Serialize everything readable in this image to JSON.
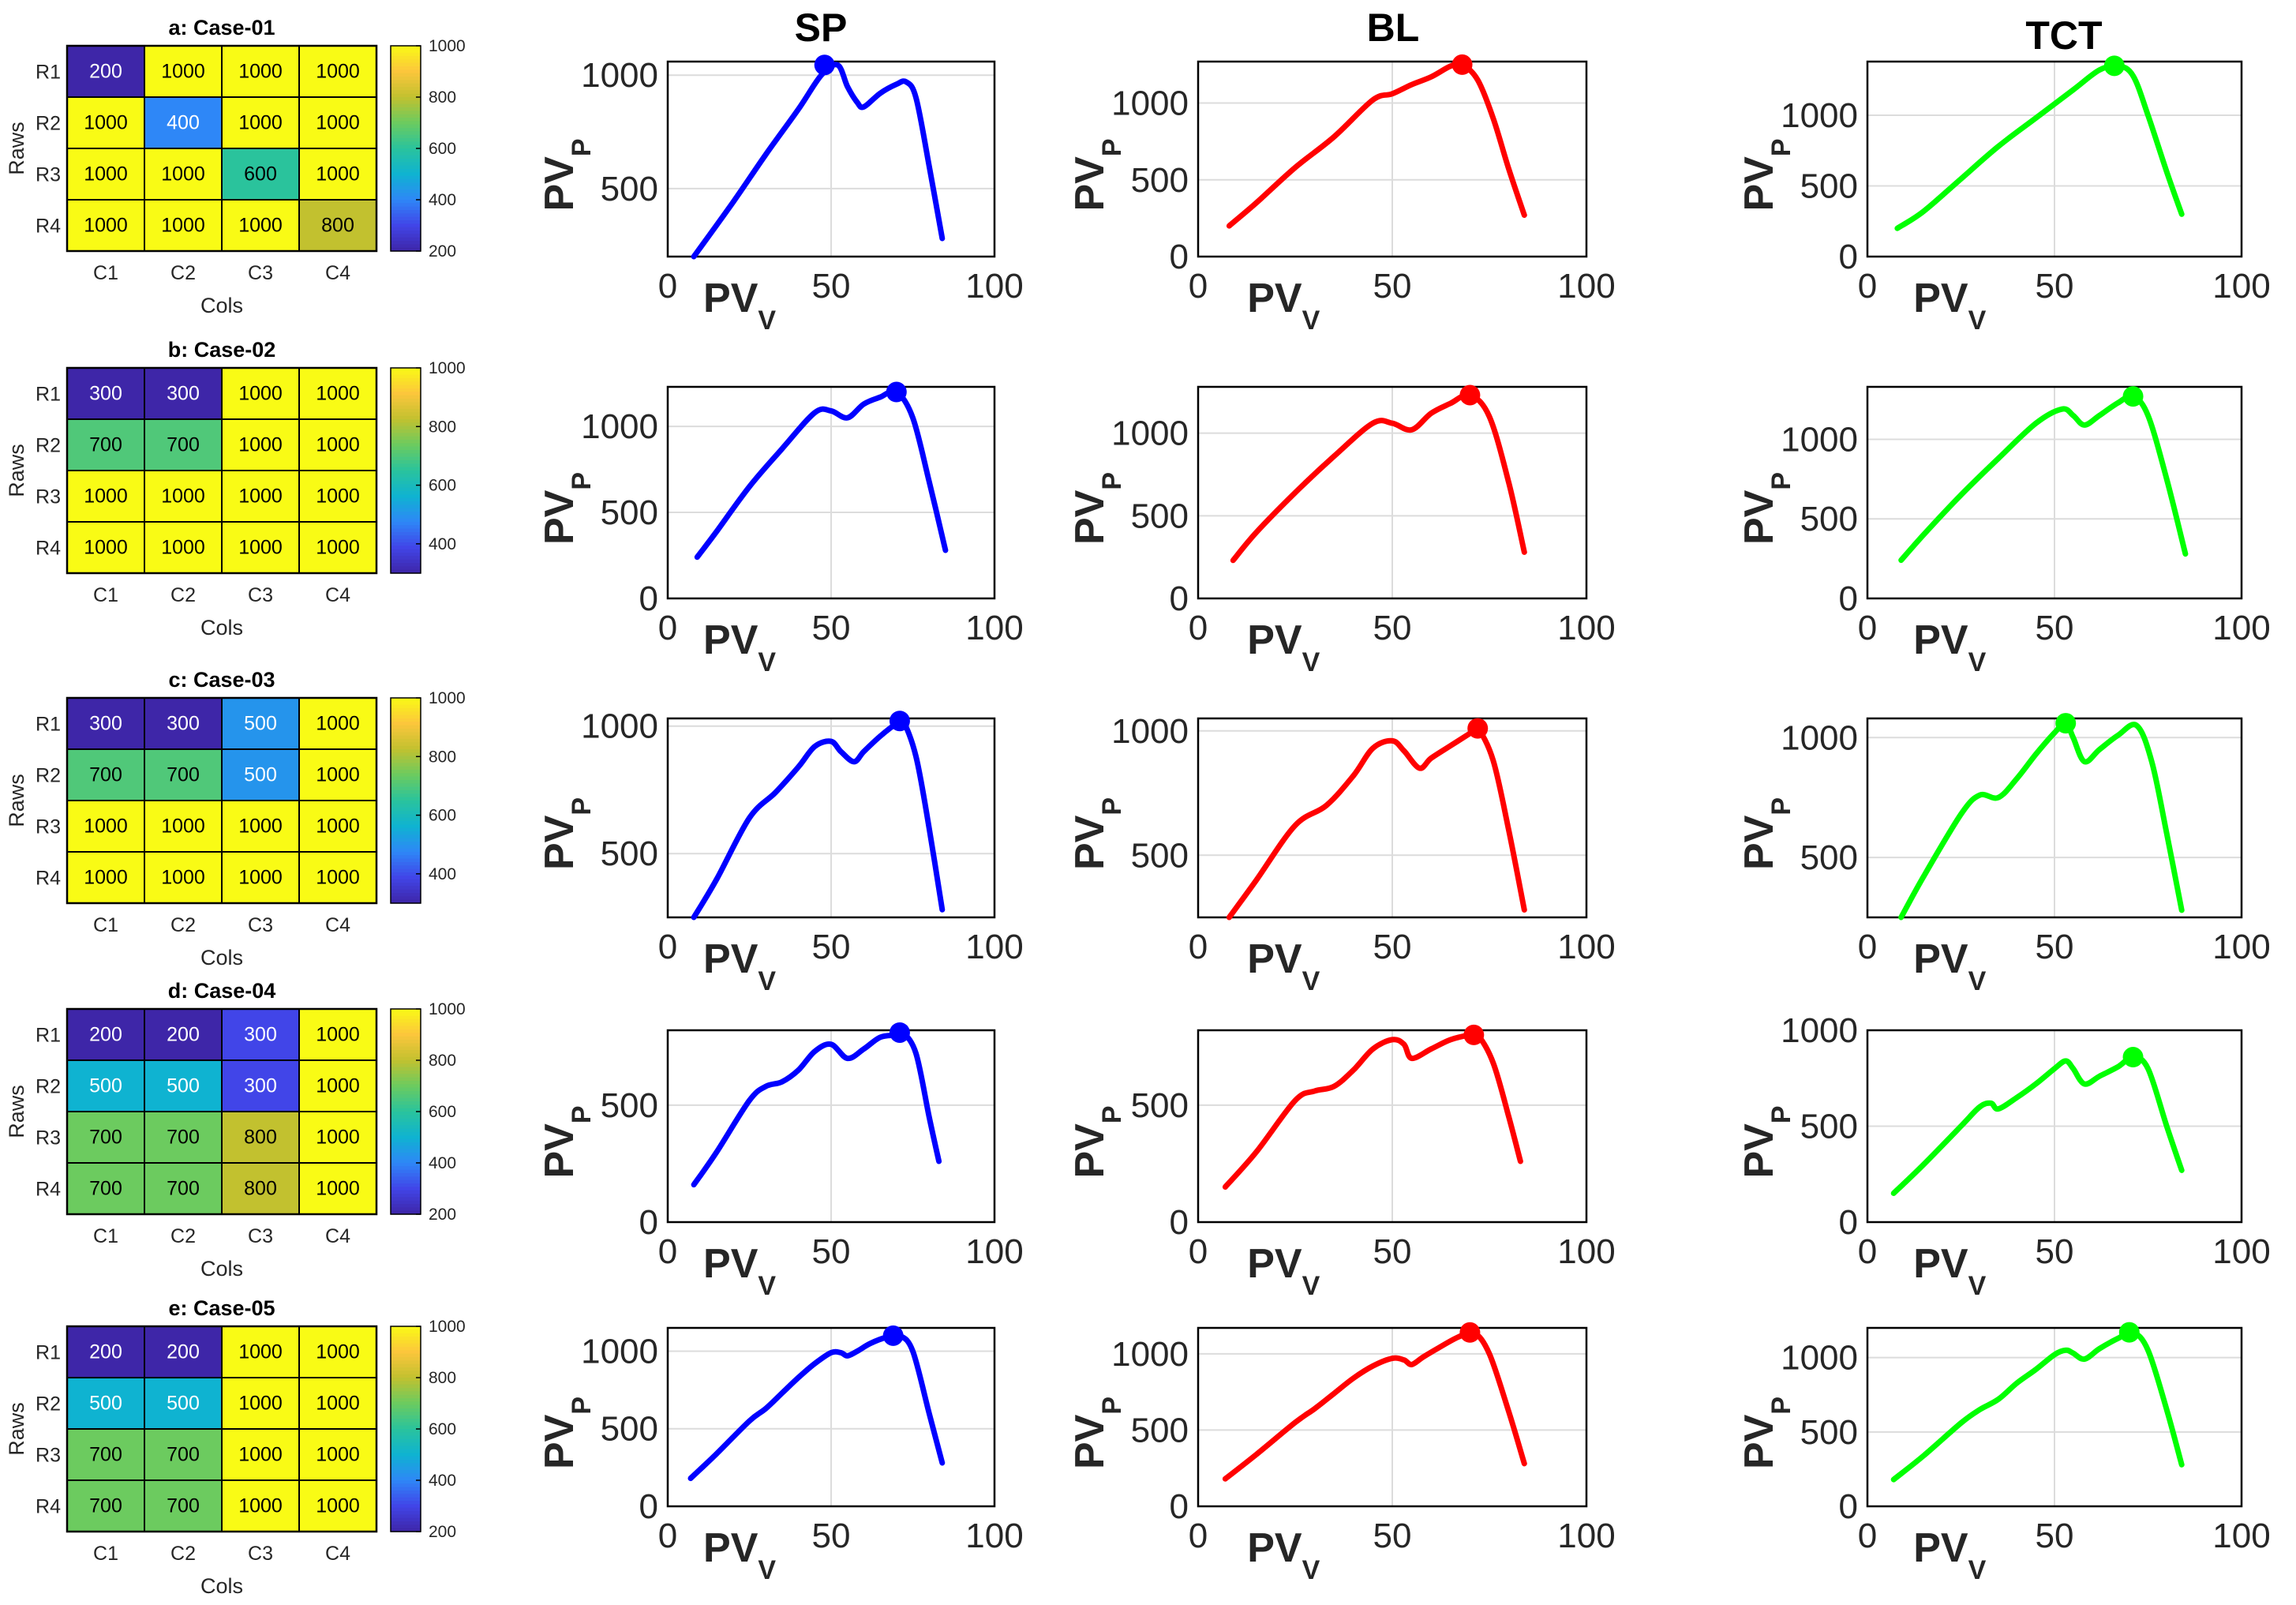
{
  "figure": {
    "column_titles": [
      "SP",
      "BL",
      "TCT"
    ],
    "series_colors": {
      "SP": "#0000ff",
      "BL": "#ff0000",
      "TCT": "#00ff00"
    },
    "colormap": [
      "#3e26a8",
      "#4145e8",
      "#2e87f7",
      "#0fb3d1",
      "#2ac39c",
      "#6ccb5f",
      "#c2c12f",
      "#fcc63c",
      "#f9fb15"
    ]
  },
  "chart_data": [
    {
      "type": "heatmap",
      "title": "a: Case-01",
      "xlabel": "Cols",
      "ylabel": "Raws",
      "col_labels": [
        "C1",
        "C2",
        "C3",
        "C4"
      ],
      "row_labels": [
        "R1",
        "R2",
        "R3",
        "R4"
      ],
      "values": [
        [
          200,
          1000,
          1000,
          1000
        ],
        [
          1000,
          400,
          1000,
          1000
        ],
        [
          1000,
          1000,
          600,
          1000
        ],
        [
          1000,
          1000,
          1000,
          800
        ]
      ],
      "clim": [
        200,
        1000
      ],
      "colorbar_ticks": [
        "200",
        "400",
        "600",
        "800",
        "1000"
      ]
    },
    {
      "type": "heatmap",
      "title": "b: Case-02",
      "xlabel": "Cols",
      "ylabel": "Raws",
      "col_labels": [
        "C1",
        "C2",
        "C3",
        "C4"
      ],
      "row_labels": [
        "R1",
        "R2",
        "R3",
        "R4"
      ],
      "values": [
        [
          300,
          300,
          1000,
          1000
        ],
        [
          700,
          700,
          1000,
          1000
        ],
        [
          1000,
          1000,
          1000,
          1000
        ],
        [
          1000,
          1000,
          1000,
          1000
        ]
      ],
      "clim": [
        300,
        1000
      ],
      "colorbar_ticks": [
        "400",
        "600",
        "800",
        "1000"
      ]
    },
    {
      "type": "heatmap",
      "title": "c: Case-03",
      "xlabel": "Cols",
      "ylabel": "Raws",
      "col_labels": [
        "C1",
        "C2",
        "C3",
        "C4"
      ],
      "row_labels": [
        "R1",
        "R2",
        "R3",
        "R4"
      ],
      "values": [
        [
          300,
          300,
          500,
          1000
        ],
        [
          700,
          700,
          500,
          1000
        ],
        [
          1000,
          1000,
          1000,
          1000
        ],
        [
          1000,
          1000,
          1000,
          1000
        ]
      ],
      "clim": [
        300,
        1000
      ],
      "colorbar_ticks": [
        "400",
        "600",
        "800",
        "1000"
      ]
    },
    {
      "type": "heatmap",
      "title": "d: Case-04",
      "xlabel": "Cols",
      "ylabel": "Raws",
      "col_labels": [
        "C1",
        "C2",
        "C3",
        "C4"
      ],
      "row_labels": [
        "R1",
        "R2",
        "R3",
        "R4"
      ],
      "values": [
        [
          200,
          200,
          300,
          1000
        ],
        [
          500,
          500,
          300,
          1000
        ],
        [
          700,
          700,
          800,
          1000
        ],
        [
          700,
          700,
          800,
          1000
        ]
      ],
      "clim": [
        200,
        1000
      ],
      "colorbar_ticks": [
        "200",
        "400",
        "600",
        "800",
        "1000"
      ]
    },
    {
      "type": "heatmap",
      "title": "e: Case-05",
      "xlabel": "Cols",
      "ylabel": "Raws",
      "col_labels": [
        "C1",
        "C2",
        "C3",
        "C4"
      ],
      "row_labels": [
        "R1",
        "R2",
        "R3",
        "R4"
      ],
      "values": [
        [
          200,
          200,
          1000,
          1000
        ],
        [
          500,
          500,
          1000,
          1000
        ],
        [
          700,
          700,
          1000,
          1000
        ],
        [
          700,
          700,
          1000,
          1000
        ]
      ],
      "clim": [
        200,
        1000
      ],
      "colorbar_ticks": [
        "200",
        "400",
        "600",
        "800",
        "1000"
      ]
    },
    {
      "type": "line",
      "case": "Case-01",
      "method": "SP",
      "xlabel": "PV",
      "xlabel_sub": "V",
      "ylabel": "PV",
      "ylabel_sub": "P",
      "xlim": [
        0,
        100
      ],
      "ylim": [
        200,
        1060
      ],
      "xticks": [
        0,
        50,
        100
      ],
      "yticks": [
        500,
        1000
      ],
      "x": [
        8,
        20,
        30,
        40,
        47,
        52,
        55,
        58,
        60,
        65,
        70,
        73,
        76,
        80,
        84
      ],
      "y": [
        200,
        440,
        650,
        850,
        1000,
        1045,
        950,
        880,
        860,
        920,
        960,
        970,
        900,
        600,
        280
      ],
      "mpp": {
        "x": 48,
        "y": 1045
      }
    },
    {
      "type": "line",
      "case": "Case-01",
      "method": "BL",
      "xlabel": "PV",
      "xlabel_sub": "V",
      "ylabel": "PV",
      "ylabel_sub": "P",
      "xlim": [
        0,
        100
      ],
      "ylim": [
        0,
        1270
      ],
      "xticks": [
        0,
        50,
        100
      ],
      "yticks": [
        0,
        500,
        1000
      ],
      "x": [
        8,
        15,
        25,
        35,
        45,
        50,
        55,
        60,
        65,
        68,
        72,
        76,
        80,
        84
      ],
      "y": [
        200,
        350,
        580,
        780,
        1020,
        1060,
        1120,
        1170,
        1240,
        1250,
        1150,
        900,
        570,
        270
      ],
      "mpp": {
        "x": 68,
        "y": 1250
      }
    },
    {
      "type": "line",
      "case": "Case-01",
      "method": "TCT",
      "xlabel": "PV",
      "xlabel_sub": "V",
      "ylabel": "PV",
      "ylabel_sub": "P",
      "xlim": [
        0,
        100
      ],
      "ylim": [
        0,
        1380
      ],
      "xticks": [
        0,
        50,
        100
      ],
      "yticks": [
        0,
        500,
        1000
      ],
      "x": [
        8,
        15,
        25,
        35,
        45,
        55,
        62,
        67,
        71,
        75,
        80,
        84
      ],
      "y": [
        200,
        320,
        550,
        780,
        980,
        1180,
        1320,
        1350,
        1280,
        1000,
        600,
        300
      ],
      "mpp": {
        "x": 66,
        "y": 1350
      }
    },
    {
      "type": "line",
      "case": "Case-02",
      "method": "SP",
      "xlabel": "PV",
      "xlabel_sub": "V",
      "ylabel": "PV",
      "ylabel_sub": "P",
      "xlim": [
        0,
        100
      ],
      "ylim": [
        0,
        1230
      ],
      "xticks": [
        0,
        50,
        100
      ],
      "yticks": [
        0,
        500,
        1000
      ],
      "x": [
        9,
        15,
        25,
        35,
        45,
        50,
        55,
        60,
        65,
        70,
        75,
        80,
        85
      ],
      "y": [
        240,
        390,
        650,
        870,
        1080,
        1090,
        1050,
        1130,
        1170,
        1200,
        1050,
        680,
        280
      ],
      "mpp": {
        "x": 70,
        "y": 1200
      }
    },
    {
      "type": "line",
      "case": "Case-02",
      "method": "BL",
      "xlabel": "PV",
      "xlabel_sub": "V",
      "ylabel": "PV",
      "ylabel_sub": "P",
      "xlim": [
        0,
        100
      ],
      "ylim": [
        0,
        1280
      ],
      "xticks": [
        0,
        50,
        100
      ],
      "yticks": [
        0,
        500,
        1000
      ],
      "x": [
        9,
        15,
        25,
        35,
        45,
        50,
        55,
        60,
        65,
        70,
        75,
        80,
        84
      ],
      "y": [
        230,
        400,
        640,
        860,
        1060,
        1060,
        1020,
        1120,
        1180,
        1230,
        1100,
        700,
        280
      ],
      "mpp": {
        "x": 70,
        "y": 1230
      }
    },
    {
      "type": "line",
      "case": "Case-02",
      "method": "TCT",
      "xlabel": "PV",
      "xlabel_sub": "V",
      "ylabel": "PV",
      "ylabel_sub": "P",
      "xlim": [
        0,
        100
      ],
      "ylim": [
        0,
        1330
      ],
      "xticks": [
        0,
        50,
        100
      ],
      "yticks": [
        0,
        500,
        1000
      ],
      "x": [
        9,
        15,
        25,
        35,
        45,
        52,
        55,
        58,
        62,
        67,
        71,
        75,
        80,
        85
      ],
      "y": [
        240,
        400,
        650,
        880,
        1100,
        1190,
        1150,
        1090,
        1150,
        1230,
        1270,
        1150,
        750,
        280
      ],
      "mpp": {
        "x": 71,
        "y": 1270
      }
    },
    {
      "type": "line",
      "case": "Case-03",
      "method": "SP",
      "xlabel": "PV",
      "xlabel_sub": "V",
      "ylabel": "PV",
      "ylabel_sub": "P",
      "xlim": [
        0,
        100
      ],
      "ylim": [
        250,
        1030
      ],
      "xticks": [
        0,
        50,
        100
      ],
      "yticks": [
        500,
        1000
      ],
      "x": [
        8,
        15,
        25,
        33,
        40,
        45,
        50,
        53,
        57,
        60,
        65,
        70,
        72,
        76,
        80,
        84
      ],
      "y": [
        250,
        400,
        640,
        740,
        840,
        920,
        940,
        900,
        860,
        900,
        960,
        1010,
        1020,
        880,
        600,
        280
      ],
      "mpp": {
        "x": 71,
        "y": 1020
      }
    },
    {
      "type": "line",
      "case": "Case-03",
      "method": "BL",
      "xlabel": "PV",
      "xlabel_sub": "V",
      "ylabel": "PV",
      "ylabel_sub": "P",
      "xlim": [
        0,
        100
      ],
      "ylim": [
        250,
        1050
      ],
      "xticks": [
        0,
        50,
        100
      ],
      "yticks": [
        500,
        1000
      ],
      "x": [
        8,
        15,
        25,
        33,
        40,
        45,
        50,
        53,
        57,
        60,
        65,
        70,
        72,
        76,
        80,
        84
      ],
      "y": [
        250,
        400,
        620,
        700,
        820,
        930,
        960,
        920,
        850,
        890,
        940,
        990,
        1010,
        880,
        600,
        280
      ],
      "mpp": {
        "x": 72,
        "y": 1010
      }
    },
    {
      "type": "line",
      "case": "Case-03",
      "method": "TCT",
      "xlabel": "PV",
      "xlabel_sub": "V",
      "ylabel": "PV",
      "ylabel_sub": "P",
      "xlim": [
        0,
        100
      ],
      "ylim": [
        250,
        1080
      ],
      "xticks": [
        0,
        50,
        100
      ],
      "yticks": [
        500,
        1000
      ],
      "x": [
        9,
        15,
        25,
        30,
        35,
        40,
        45,
        50,
        53,
        55,
        58,
        62,
        67,
        72,
        76,
        80,
        84
      ],
      "y": [
        250,
        420,
        680,
        760,
        750,
        830,
        930,
        1020,
        1060,
        1000,
        900,
        950,
        1010,
        1050,
        900,
        600,
        280
      ],
      "mpp": {
        "x": 53,
        "y": 1060
      }
    },
    {
      "type": "line",
      "case": "Case-04",
      "method": "SP",
      "xlabel": "PV",
      "xlabel_sub": "V",
      "ylabel": "PV",
      "ylabel_sub": "P",
      "xlim": [
        0,
        100
      ],
      "ylim": [
        0,
        820
      ],
      "xticks": [
        0,
        50,
        100
      ],
      "yticks": [
        0,
        500
      ],
      "x": [
        8,
        15,
        25,
        30,
        35,
        40,
        45,
        50,
        55,
        60,
        65,
        70,
        72,
        76,
        80,
        83
      ],
      "y": [
        160,
        300,
        520,
        580,
        600,
        650,
        730,
        760,
        700,
        740,
        790,
        800,
        810,
        720,
        450,
        260
      ],
      "mpp": {
        "x": 71,
        "y": 810
      }
    },
    {
      "type": "line",
      "case": "Case-04",
      "method": "BL",
      "xlabel": "PV",
      "xlabel_sub": "V",
      "ylabel": "PV",
      "ylabel_sub": "P",
      "xlim": [
        0,
        100
      ],
      "ylim": [
        0,
        820
      ],
      "xticks": [
        0,
        50,
        100
      ],
      "yticks": [
        0,
        500
      ],
      "x": [
        7,
        15,
        25,
        30,
        35,
        40,
        45,
        50,
        53,
        55,
        60,
        65,
        70,
        72,
        76,
        80,
        83
      ],
      "y": [
        150,
        300,
        520,
        560,
        580,
        650,
        740,
        780,
        760,
        700,
        740,
        780,
        800,
        800,
        680,
        450,
        260
      ],
      "mpp": {
        "x": 71,
        "y": 800
      }
    },
    {
      "type": "line",
      "case": "Case-04",
      "method": "TCT",
      "xlabel": "PV",
      "xlabel_sub": "V",
      "ylabel": "PV",
      "ylabel_sub": "P",
      "xlim": [
        0,
        100
      ],
      "ylim": [
        0,
        1000
      ],
      "xticks": [
        0,
        50,
        100
      ],
      "yticks": [
        0,
        500,
        1000
      ],
      "x": [
        7,
        15,
        25,
        30,
        33,
        35,
        40,
        45,
        50,
        53,
        55,
        58,
        62,
        67,
        71,
        75,
        80,
        84
      ],
      "y": [
        150,
        300,
        500,
        600,
        620,
        590,
        650,
        720,
        800,
        840,
        800,
        720,
        760,
        810,
        860,
        800,
        500,
        270
      ],
      "mpp": {
        "x": 71,
        "y": 860
      }
    },
    {
      "type": "line",
      "case": "Case-05",
      "method": "SP",
      "xlabel": "PV",
      "xlabel_sub": "V",
      "ylabel": "PV",
      "ylabel_sub": "P",
      "xlim": [
        0,
        100
      ],
      "ylim": [
        0,
        1150
      ],
      "xticks": [
        0,
        50,
        100
      ],
      "yticks": [
        0,
        500,
        1000
      ],
      "x": [
        7,
        15,
        25,
        30,
        35,
        40,
        45,
        50,
        53,
        55,
        58,
        62,
        67,
        71,
        75,
        80,
        84
      ],
      "y": [
        180,
        340,
        550,
        630,
        730,
        830,
        920,
        990,
        990,
        970,
        1000,
        1050,
        1090,
        1100,
        1000,
        600,
        280
      ],
      "mpp": {
        "x": 69,
        "y": 1100
      }
    },
    {
      "type": "line",
      "case": "Case-05",
      "method": "BL",
      "xlabel": "PV",
      "xlabel_sub": "V",
      "ylabel": "PV",
      "ylabel_sub": "P",
      "xlim": [
        0,
        100
      ],
      "ylim": [
        0,
        1170
      ],
      "xticks": [
        0,
        50,
        100
      ],
      "yticks": [
        0,
        500,
        1000
      ],
      "x": [
        7,
        15,
        25,
        30,
        35,
        40,
        45,
        50,
        53,
        55,
        58,
        62,
        67,
        71,
        75,
        80,
        84
      ],
      "y": [
        180,
        340,
        550,
        640,
        740,
        840,
        920,
        970,
        960,
        930,
        980,
        1040,
        1110,
        1140,
        1000,
        620,
        280
      ],
      "mpp": {
        "x": 70,
        "y": 1140
      }
    },
    {
      "type": "line",
      "case": "Case-05",
      "method": "TCT",
      "xlabel": "PV",
      "xlabel_sub": "V",
      "ylabel": "PV",
      "ylabel_sub": "P",
      "xlim": [
        0,
        100
      ],
      "ylim": [
        0,
        1200
      ],
      "xticks": [
        0,
        50,
        100
      ],
      "yticks": [
        0,
        500,
        1000
      ],
      "x": [
        7,
        15,
        25,
        30,
        35,
        40,
        45,
        50,
        53,
        55,
        58,
        62,
        67,
        71,
        75,
        80,
        84
      ],
      "y": [
        180,
        340,
        560,
        650,
        720,
        830,
        920,
        1020,
        1050,
        1030,
        990,
        1060,
        1130,
        1170,
        1050,
        650,
        280
      ],
      "mpp": {
        "x": 70,
        "y": 1170
      }
    }
  ]
}
